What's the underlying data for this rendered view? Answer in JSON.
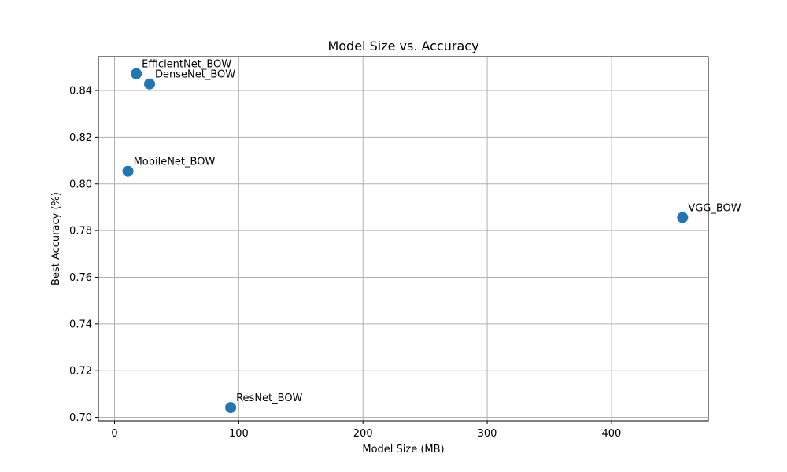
{
  "chart_data": {
    "type": "scatter",
    "title": "Model Size vs. Accuracy",
    "xlabel": "Model Size (MB)",
    "ylabel": "Best Accuracy (%)",
    "xlim": [
      -13,
      478
    ],
    "ylim": [
      0.6985,
      0.8545
    ],
    "xticks": [
      0,
      100,
      200,
      300,
      400
    ],
    "yticks": [
      0.7,
      0.72,
      0.74,
      0.76,
      0.78,
      0.8,
      0.82,
      0.84
    ],
    "grid": true,
    "marker_color": "#1f77b4",
    "points": [
      {
        "label": "EfficientNet_BOW",
        "x": 17.5,
        "y": 0.8472
      },
      {
        "label": "DenseNet_BOW",
        "x": 28.2,
        "y": 0.8428
      },
      {
        "label": "MobileNet_BOW",
        "x": 10.8,
        "y": 0.8054
      },
      {
        "label": "VGG_BOW",
        "x": 457.3,
        "y": 0.7856
      },
      {
        "label": "ResNet_BOW",
        "x": 93.5,
        "y": 0.7042
      }
    ]
  }
}
